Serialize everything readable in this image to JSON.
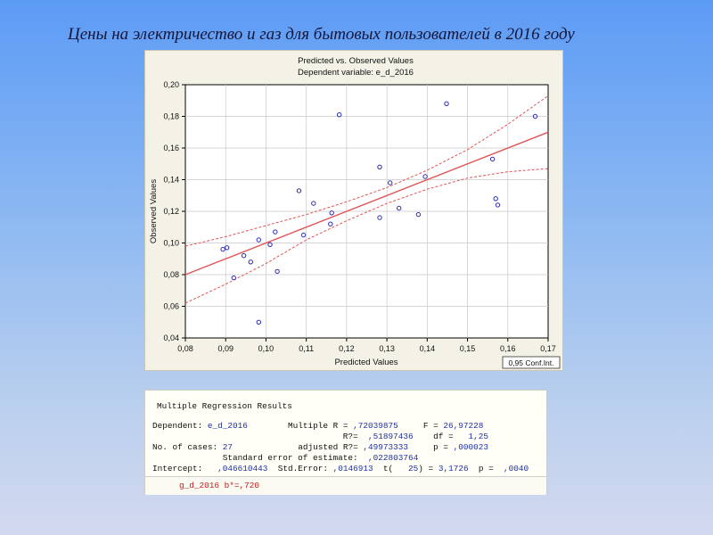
{
  "slide_title": "Цены на электричество и газ для бытовых пользователей в 2016 году",
  "chart_data": {
    "type": "scatter",
    "title": "Predicted vs. Observed Values",
    "subtitle": "Dependent variable: e_d_2016",
    "xlabel": "Predicted Values",
    "ylabel": "Observed Values",
    "xlim": [
      0.08,
      0.17
    ],
    "ylim": [
      0.04,
      0.2
    ],
    "x_ticks": [
      "0,08",
      "0,09",
      "0,10",
      "0,11",
      "0,12",
      "0,13",
      "0,14",
      "0,15",
      "0,16",
      "0,17"
    ],
    "y_ticks": [
      "0,04",
      "0,06",
      "0,08",
      "0,10",
      "0,12",
      "0,14",
      "0,16",
      "0,18",
      "0,20"
    ],
    "legend": "0,95 Conf.Int.",
    "legend_position": "bottom-right",
    "grid": true,
    "colors": {
      "points": "#2c2cb0",
      "line": "#e05555",
      "grid": "#c8c8c8"
    },
    "points": [
      {
        "x": 0.0893,
        "y": 0.096
      },
      {
        "x": 0.0903,
        "y": 0.097
      },
      {
        "x": 0.092,
        "y": 0.078
      },
      {
        "x": 0.0945,
        "y": 0.092
      },
      {
        "x": 0.0962,
        "y": 0.088
      },
      {
        "x": 0.0982,
        "y": 0.102
      },
      {
        "x": 0.0982,
        "y": 0.05
      },
      {
        "x": 0.101,
        "y": 0.099
      },
      {
        "x": 0.1023,
        "y": 0.107
      },
      {
        "x": 0.1028,
        "y": 0.082
      },
      {
        "x": 0.1082,
        "y": 0.133
      },
      {
        "x": 0.1093,
        "y": 0.105
      },
      {
        "x": 0.1118,
        "y": 0.125
      },
      {
        "x": 0.116,
        "y": 0.112
      },
      {
        "x": 0.1163,
        "y": 0.119
      },
      {
        "x": 0.1182,
        "y": 0.181
      },
      {
        "x": 0.1282,
        "y": 0.148
      },
      {
        "x": 0.1282,
        "y": 0.116
      },
      {
        "x": 0.1308,
        "y": 0.138
      },
      {
        "x": 0.133,
        "y": 0.122
      },
      {
        "x": 0.1378,
        "y": 0.118
      },
      {
        "x": 0.1395,
        "y": 0.142
      },
      {
        "x": 0.1448,
        "y": 0.188
      },
      {
        "x": 0.1562,
        "y": 0.153
      },
      {
        "x": 0.157,
        "y": 0.128
      },
      {
        "x": 0.1575,
        "y": 0.124
      },
      {
        "x": 0.1668,
        "y": 0.18
      }
    ],
    "fit_line": [
      [
        0.08,
        0.08
      ],
      [
        0.17,
        0.17
      ]
    ],
    "ci_upper": [
      [
        0.08,
        0.098
      ],
      [
        0.09,
        0.104
      ],
      [
        0.1,
        0.111
      ],
      [
        0.11,
        0.118
      ],
      [
        0.12,
        0.126
      ],
      [
        0.13,
        0.135
      ],
      [
        0.14,
        0.146
      ],
      [
        0.15,
        0.159
      ],
      [
        0.16,
        0.175
      ],
      [
        0.17,
        0.193
      ]
    ],
    "ci_lower": [
      [
        0.08,
        0.062
      ],
      [
        0.09,
        0.074
      ],
      [
        0.1,
        0.087
      ],
      [
        0.11,
        0.102
      ],
      [
        0.12,
        0.114
      ],
      [
        0.13,
        0.125
      ],
      [
        0.14,
        0.134
      ],
      [
        0.15,
        0.141
      ],
      [
        0.16,
        0.145
      ],
      [
        0.17,
        0.147
      ]
    ]
  },
  "results": {
    "title": "Multiple Regression Results",
    "dependent_label": "Dependent:",
    "dependent_value": "e_d_2016",
    "multiple_r_label": "Multiple R =",
    "multiple_r_value": ",72039875",
    "f_label": "F =",
    "f_value": "26,97228",
    "r2_label": "R?=",
    "r2_value": ",51897436",
    "df_label": "df =",
    "df_value": "1,25",
    "cases_label": "No. of cases:",
    "cases_value": "27",
    "adj_r2_label": "adjusted R?=",
    "adj_r2_value": ",49973333",
    "p_label": "p =",
    "p_value": ",000023",
    "se_label": "Standard error of estimate:",
    "se_value": ",022803764",
    "intercept_label": "Intercept:",
    "intercept_value": ",046610443",
    "stderr_label": "Std.Error:",
    "stderr_value": ",0146913",
    "t_label": "t(",
    "t_df_value": "25",
    "t_close": ") =",
    "t_value": "3,1726",
    "p2_label": "p =",
    "p2_value": ",0040",
    "footer": "g_d_2016 b*=,720"
  }
}
